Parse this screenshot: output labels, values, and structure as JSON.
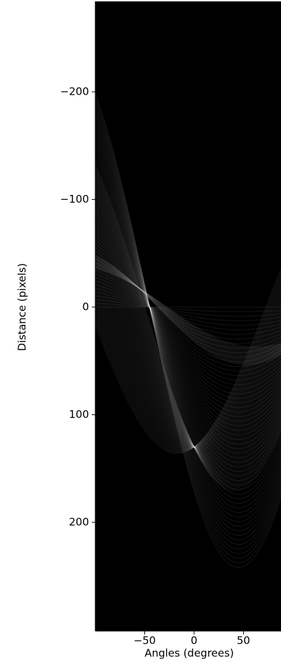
{
  "chart_data": {
    "type": "image",
    "x_label": "Angles (degrees)",
    "y_label": "Distance (pixels)",
    "xlim": [
      -100,
      88
    ],
    "ylim": [
      -284,
      301
    ],
    "y_inverted": true,
    "xticks": [
      {
        "value": -50,
        "label": "−50"
      },
      0,
      50
    ],
    "yticks": [
      {
        "value": -200,
        "label": "−200"
      },
      {
        "value": -100,
        "label": "−100"
      },
      0,
      100,
      200
    ],
    "colormap": "gray"
  }
}
